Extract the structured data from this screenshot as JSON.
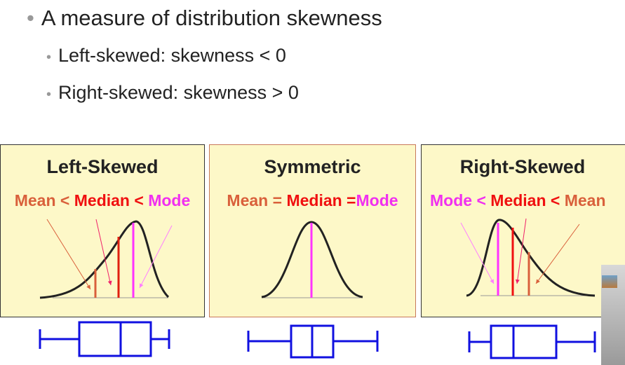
{
  "bullets": {
    "main": "A measure of distribution skewness",
    "sub": [
      "Left-skewed: skewness < 0",
      "Right-skewed: skewness > 0"
    ]
  },
  "panels": [
    {
      "title": "Left-Skewed",
      "rel": [
        "Mean",
        " < ",
        "Median",
        " < ",
        "Mode"
      ]
    },
    {
      "title": "Symmetric",
      "rel": [
        "Mean",
        " = ",
        "Median",
        " =",
        "Mode"
      ]
    },
    {
      "title": "Right-Skewed",
      "rel": [
        "Mode",
        " < ",
        "Median",
        " < ",
        "Mean"
      ]
    }
  ],
  "colors": {
    "mean": "#d9603b",
    "median": "#f01010",
    "mode": "#f030f0",
    "box": "#1010e0"
  }
}
